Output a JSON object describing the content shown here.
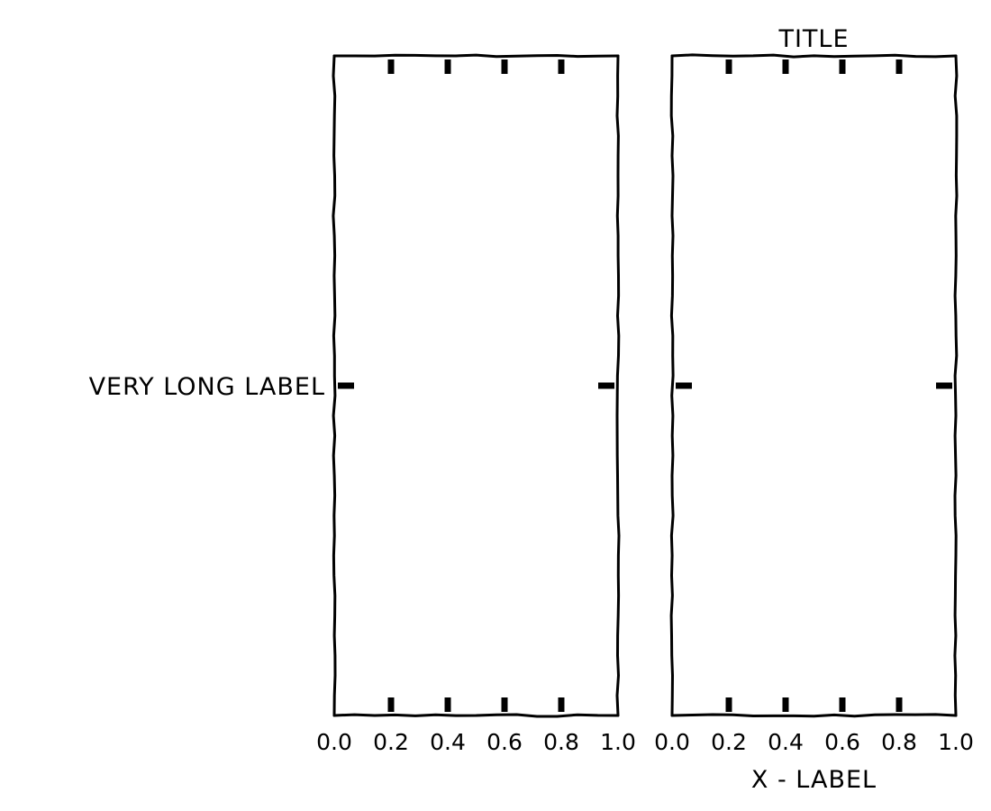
{
  "chart_data": [
    {
      "type": "scatter",
      "title": "",
      "xlabel": "",
      "ylabel": "VERY LONG LABEL",
      "xlim": [
        0.0,
        1.0
      ],
      "ylim": [
        0.0,
        1.0
      ],
      "x_ticks": [
        0.0,
        0.2,
        0.4,
        0.6,
        0.8,
        1.0
      ],
      "x_tick_labels": [
        "0.0",
        "0.2",
        "0.4",
        "0.6",
        "0.8",
        "1.0"
      ],
      "y_ticks": [
        0.5
      ],
      "y_tick_labels": [
        ""
      ],
      "grid": false,
      "style": "xkcd",
      "series": []
    },
    {
      "type": "scatter",
      "title": "TITLE",
      "xlabel": "X - LABEL",
      "ylabel": "",
      "xlim": [
        0.0,
        1.0
      ],
      "ylim": [
        0.0,
        1.0
      ],
      "x_ticks": [
        0.0,
        0.2,
        0.4,
        0.6,
        0.8,
        1.0
      ],
      "x_tick_labels": [
        "0.0",
        "0.2",
        "0.4",
        "0.6",
        "0.8",
        "1.0"
      ],
      "y_ticks": [
        0.5
      ],
      "y_tick_labels": [
        ""
      ],
      "grid": false,
      "style": "xkcd",
      "series": []
    }
  ],
  "colors": {
    "background": "#ffffff",
    "ink": "#000000"
  }
}
